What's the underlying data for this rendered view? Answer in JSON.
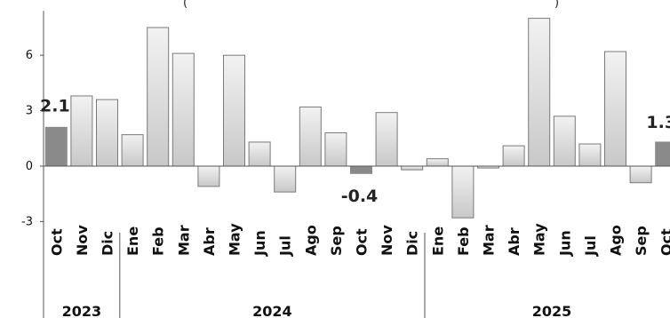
{
  "chart_data": {
    "type": "bar",
    "title_fragments": [
      "(",
      ")"
    ],
    "y_ticks": [
      -3,
      0,
      3,
      6
    ],
    "ylim": [
      -4.1,
      8.4
    ],
    "categories": [
      "Oct",
      "Nov",
      "Dic",
      "Ene",
      "Feb",
      "Mar",
      "Abr",
      "May",
      "Jun",
      "Jul",
      "Ago",
      "Sep",
      "Oct",
      "Nov",
      "Dic",
      "Ene",
      "Feb",
      "Mar",
      "Abr",
      "May",
      "Jun",
      "Jul",
      "Ago",
      "Sep",
      "Oct"
    ],
    "years": [
      {
        "label": "2023",
        "start": 0,
        "end": 2
      },
      {
        "label": "2024",
        "start": 3,
        "end": 14
      },
      {
        "label": "2025",
        "start": 15,
        "end": 24
      }
    ],
    "values": [
      2.1,
      3.8,
      3.6,
      1.7,
      7.5,
      6.1,
      -1.1,
      6.0,
      1.3,
      -1.4,
      3.2,
      1.8,
      -0.4,
      2.9,
      -0.2,
      0.4,
      -2.8,
      -0.1,
      1.1,
      8.0,
      2.7,
      1.2,
      6.2,
      -0.9,
      1.3
    ],
    "highlighted": [
      0,
      12,
      24
    ],
    "data_labels": [
      {
        "index": 0,
        "text": "2.1"
      },
      {
        "index": 12,
        "text": "-0.4"
      },
      {
        "index": 24,
        "text": "1.3"
      }
    ],
    "colors": {
      "normal_top": "#f2f2f2",
      "normal_bottom": "#c8c8c8",
      "highlight": "#8a8a8a",
      "stroke": "#7a7a7a",
      "axis": "#555555"
    },
    "grid": false
  }
}
